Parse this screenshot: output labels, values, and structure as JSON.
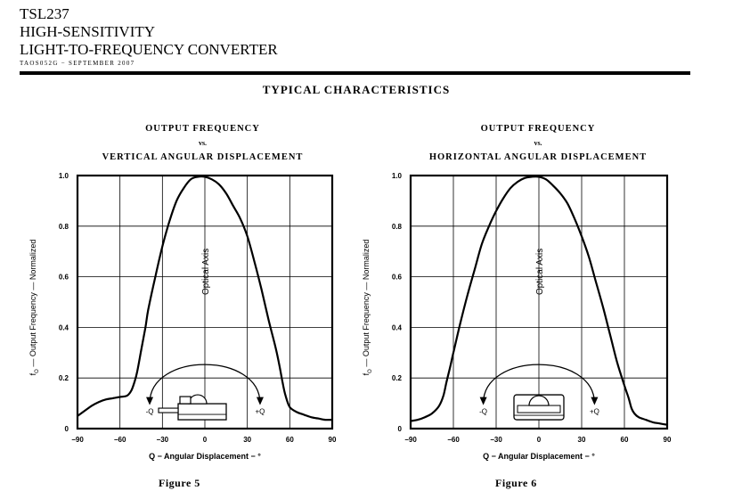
{
  "header": {
    "part": "TSL237",
    "line1": "HIGH-SENSITIVITY",
    "line2": "LIGHT-TO-FREQUENCY CONVERTER",
    "doc_code": "TAOS052G − SEPTEMBER 2007"
  },
  "section_title": "TYPICAL CHARACTERISTICS",
  "colors": {
    "ink": "#000000",
    "background": "#ffffff"
  },
  "chart_data": [
    {
      "type": "line",
      "title": "OUTPUT FREQUENCY",
      "title_vs": "vs.",
      "subtitle": "VERTICAL ANGULAR DISPLACEMENT",
      "caption": "Figure 5",
      "xlabel": "Q − Angular Displacement − °",
      "ylabel_sym": "f",
      "ylabel_sub": "O",
      "ylabel_rest": " — Output Frequency — Normalized",
      "xlim": [
        -90,
        90
      ],
      "ylim": [
        0,
        1.0
      ],
      "xticks": [
        -90,
        -60,
        -30,
        0,
        30,
        60,
        90
      ],
      "yticks": [
        0,
        0.2,
        0.4,
        0.6,
        0.8,
        1.0
      ],
      "ytick_labels": [
        "0",
        "0.2",
        "0.4",
        "0.6",
        "0.8",
        "1.0"
      ],
      "grid": true,
      "annotation_axis": "Optical Axis",
      "label_minus": "-Q",
      "label_plus": "+Q",
      "series": [
        {
          "x": [
            -90,
            -85,
            -80,
            -75,
            -70,
            -65,
            -60,
            -55,
            -52,
            -50,
            -48,
            -45,
            -42,
            -40,
            -35,
            -30,
            -25,
            -20,
            -15,
            -10,
            -5,
            0,
            5,
            10,
            15,
            20,
            25,
            30,
            35,
            40,
            45,
            50,
            53,
            55,
            57,
            60,
            65,
            70,
            75,
            80,
            85,
            90
          ],
          "y": [
            0.05,
            0.07,
            0.09,
            0.105,
            0.115,
            0.12,
            0.125,
            0.13,
            0.15,
            0.18,
            0.22,
            0.31,
            0.4,
            0.47,
            0.6,
            0.72,
            0.82,
            0.9,
            0.95,
            0.985,
            0.995,
            0.995,
            0.985,
            0.965,
            0.93,
            0.88,
            0.83,
            0.76,
            0.66,
            0.55,
            0.43,
            0.32,
            0.24,
            0.18,
            0.13,
            0.085,
            0.065,
            0.055,
            0.045,
            0.04,
            0.035,
            0.035
          ]
        }
      ]
    },
    {
      "type": "line",
      "title": "OUTPUT FREQUENCY",
      "title_vs": "vs.",
      "subtitle": "HORIZONTAL ANGULAR DISPLACEMENT",
      "caption": "Figure 6",
      "xlabel": "Q − Angular Displacement − °",
      "ylabel_sym": "f",
      "ylabel_sub": "O",
      "ylabel_rest": " — Output Frequency — Normalized",
      "xlim": [
        -90,
        90
      ],
      "ylim": [
        0,
        1.0
      ],
      "xticks": [
        -90,
        -60,
        -30,
        0,
        30,
        60,
        90
      ],
      "yticks": [
        0,
        0.2,
        0.4,
        0.6,
        0.8,
        1.0
      ],
      "ytick_labels": [
        "0",
        "0.2",
        "0.4",
        "0.6",
        "0.8",
        "1.0"
      ],
      "grid": true,
      "annotation_axis": "Optical Axis",
      "label_minus": "-Q",
      "label_plus": "+Q",
      "series": [
        {
          "x": [
            -90,
            -85,
            -80,
            -75,
            -70,
            -67,
            -65,
            -62,
            -60,
            -55,
            -50,
            -45,
            -40,
            -35,
            -30,
            -25,
            -20,
            -15,
            -10,
            -5,
            0,
            5,
            10,
            15,
            20,
            25,
            30,
            35,
            40,
            45,
            50,
            55,
            60,
            63,
            65,
            67,
            70,
            75,
            80,
            85,
            90
          ],
          "y": [
            0.03,
            0.035,
            0.045,
            0.06,
            0.09,
            0.13,
            0.18,
            0.25,
            0.3,
            0.42,
            0.53,
            0.63,
            0.73,
            0.8,
            0.86,
            0.91,
            0.95,
            0.975,
            0.99,
            0.995,
            0.995,
            0.985,
            0.96,
            0.93,
            0.89,
            0.83,
            0.76,
            0.68,
            0.58,
            0.48,
            0.37,
            0.26,
            0.17,
            0.12,
            0.08,
            0.06,
            0.045,
            0.035,
            0.025,
            0.02,
            0.015
          ]
        }
      ]
    }
  ]
}
